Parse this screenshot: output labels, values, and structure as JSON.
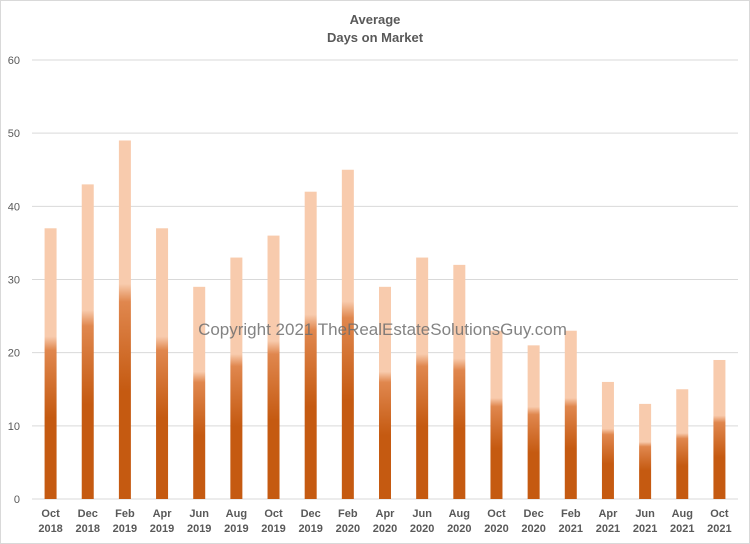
{
  "chart_data": {
    "type": "bar",
    "title_line1": "Average",
    "title_line2": "Days on Market",
    "categories": [
      [
        "Oct",
        "2018"
      ],
      [
        "Dec",
        "2018"
      ],
      [
        "Feb",
        "2019"
      ],
      [
        "Apr",
        "2019"
      ],
      [
        "Jun",
        "2019"
      ],
      [
        "Aug",
        "2019"
      ],
      [
        "Oct",
        "2019"
      ],
      [
        "Dec",
        "2019"
      ],
      [
        "Feb",
        "2020"
      ],
      [
        "Apr",
        "2020"
      ],
      [
        "Jun",
        "2020"
      ],
      [
        "Aug",
        "2020"
      ],
      [
        "Oct",
        "2020"
      ],
      [
        "Dec",
        "2020"
      ],
      [
        "Feb",
        "2021"
      ],
      [
        "Apr",
        "2021"
      ],
      [
        "Jun",
        "2021"
      ],
      [
        "Aug",
        "2021"
      ],
      [
        "Oct",
        "2021"
      ]
    ],
    "values": [
      37,
      43,
      49,
      37,
      29,
      33,
      36,
      42,
      45,
      29,
      33,
      32,
      23,
      21,
      23,
      16,
      13,
      15,
      19
    ],
    "ylim": [
      0,
      60
    ],
    "yticks": [
      0,
      10,
      20,
      30,
      40,
      50,
      60
    ],
    "grid": true,
    "colors": {
      "bar_bottom": "#c55a11",
      "bar_mid": "#e0874e",
      "bar_top": "#f8cbad",
      "grid": "#d9d9d9"
    }
  },
  "watermark": "Copyright 2021 TheRealEstateSolutionsGuy.com"
}
